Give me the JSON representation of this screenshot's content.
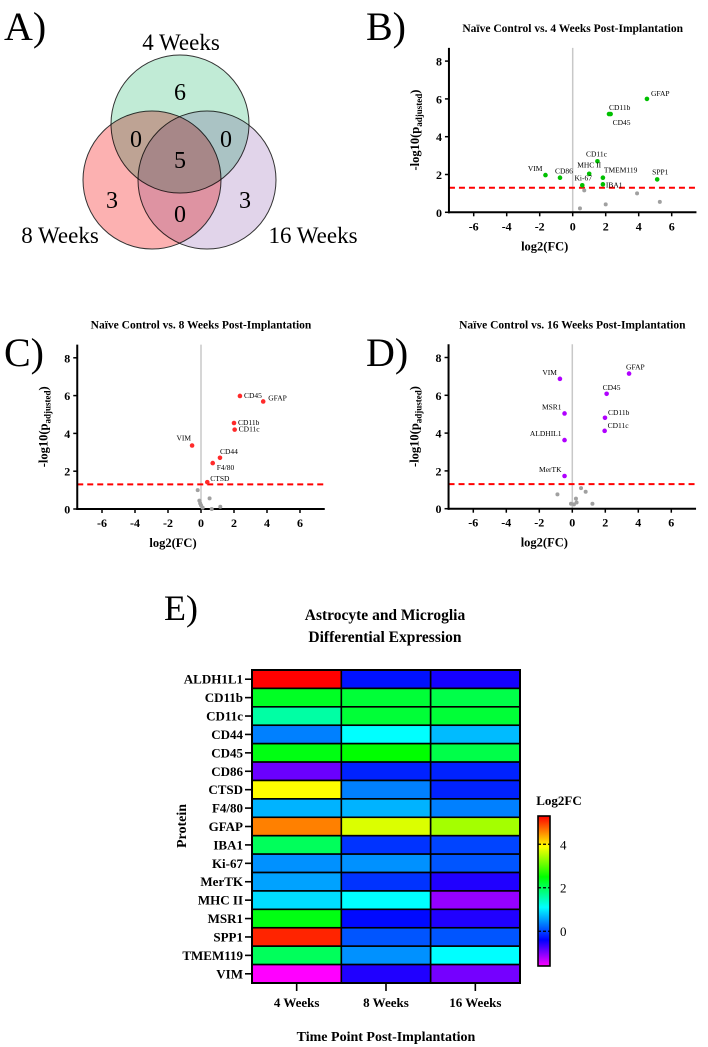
{
  "panel_labels": {
    "a": "A)",
    "b": "B)",
    "c": "C)",
    "d": "D)",
    "e": "E)"
  },
  "chart_data": [
    {
      "type": "venn",
      "sets": [
        {
          "name": "4 Weeks",
          "color": "#b6e8cf"
        },
        {
          "name": "8 Weeks",
          "color": "#fca3a3"
        },
        {
          "name": "16 Weeks",
          "color": "#dccde6"
        }
      ],
      "regions": {
        "only_4": "6",
        "only_8": "3",
        "only_16": "3",
        "4_and_8": "0",
        "4_and_16": "0",
        "8_and_16": "0",
        "all": "5"
      }
    },
    {
      "type": "scatter",
      "title": "Naïve Control vs. 4 Weeks Post-Implantation",
      "xlabel": "log2(FC)",
      "ylabel_main": "-log10(p",
      "ylabel_sub": "adjusted",
      "ylabel_end": ")",
      "xlim": [
        -7.5,
        7.5
      ],
      "ylim": [
        0,
        8.7
      ],
      "xticks": [
        "-6",
        "-4",
        "-2",
        "0",
        "2",
        "4",
        "6"
      ],
      "yticks": [
        "0",
        "2",
        "4",
        "6",
        "8"
      ],
      "threshold": 1.3,
      "threshold_color": "#ff0000",
      "color": "#00c000",
      "nonsig_color": "#a0a0a0",
      "significant": [
        {
          "label": "GFAP",
          "x": 4.5,
          "y": 6.0
        },
        {
          "label": "CD11b",
          "x": 2.2,
          "y": 5.2
        },
        {
          "label": "CD45",
          "x": 2.3,
          "y": 5.2
        },
        {
          "label": "CD11c",
          "x": 1.5,
          "y": 2.7
        },
        {
          "label": "MHC II",
          "x": 1.0,
          "y": 2.04
        },
        {
          "label": "TMEM119",
          "x": 1.83,
          "y": 1.83
        },
        {
          "label": "IBA1",
          "x": 1.83,
          "y": 1.48
        },
        {
          "label": "Ki-67",
          "x": 0.58,
          "y": 1.43
        },
        {
          "label": "VIM",
          "x": -1.65,
          "y": 1.97
        },
        {
          "label": "CD86",
          "x": -0.77,
          "y": 1.83
        },
        {
          "label": "SPP1",
          "x": 5.12,
          "y": 1.74
        }
      ],
      "nonsignificant": [
        [
          0.7,
          1.16
        ],
        [
          3.9,
          1.0
        ],
        [
          5.28,
          0.55
        ],
        [
          2.0,
          0.42
        ],
        [
          0.44,
          0.21
        ]
      ]
    },
    {
      "type": "scatter",
      "title": "Naïve Control vs. 8 Weeks Post-Implantation",
      "xlabel": "log2(FC)",
      "ylabel_main": "-log10(p",
      "ylabel_sub": "adjusted",
      "ylabel_end": ")",
      "xlim": [
        -7.5,
        7.5
      ],
      "ylim": [
        0,
        8.7
      ],
      "xticks": [
        "-6",
        "-4",
        "-2",
        "0",
        "2",
        "4",
        "6"
      ],
      "yticks": [
        "0",
        "2",
        "4",
        "6",
        "8"
      ],
      "threshold": 1.3,
      "threshold_color": "#ff0000",
      "color": "#ff2a2a",
      "nonsig_color": "#a0a0a0",
      "significant": [
        {
          "label": "CD45",
          "x": 2.36,
          "y": 5.98
        },
        {
          "label": "GFAP",
          "x": 3.77,
          "y": 5.69
        },
        {
          "label": "CD11b",
          "x": 2.0,
          "y": 4.55
        },
        {
          "label": "CD11c",
          "x": 2.04,
          "y": 4.2
        },
        {
          "label": "VIM",
          "x": -0.54,
          "y": 3.36
        },
        {
          "label": "CD44",
          "x": 1.15,
          "y": 2.71
        },
        {
          "label": "F4/80",
          "x": 0.71,
          "y": 2.43
        },
        {
          "label": "CTSD",
          "x": 0.38,
          "y": 1.42
        }
      ],
      "nonsignificant": [
        [
          -0.2,
          1.0
        ],
        [
          -0.1,
          0.44
        ],
        [
          0.52,
          0.56
        ],
        [
          0.0,
          0.2
        ],
        [
          0.1,
          0.07
        ],
        [
          0.65,
          0.0
        ],
        [
          1.17,
          0.12
        ],
        [
          -0.05,
          0.3
        ]
      ]
    },
    {
      "type": "scatter",
      "title": "Naïve Control vs. 16 Weeks Post-Implantation",
      "xlabel": "log2(FC)",
      "ylabel_main": "-log10(p",
      "ylabel_sub": "adjusted",
      "ylabel_end": ")",
      "xlim": [
        -7.5,
        7.5
      ],
      "ylim": [
        0,
        8.7
      ],
      "xticks": [
        "-6",
        "-4",
        "-2",
        "0",
        "2",
        "4",
        "6"
      ],
      "yticks": [
        "0",
        "2",
        "4",
        "6",
        "8"
      ],
      "threshold": 1.3,
      "threshold_color": "#ff0000",
      "color": "#b000ff",
      "nonsig_color": "#a0a0a0",
      "significant": [
        {
          "label": "GFAP",
          "x": 3.44,
          "y": 7.15
        },
        {
          "label": "VIM",
          "x": -0.75,
          "y": 6.87
        },
        {
          "label": "CD45",
          "x": 2.08,
          "y": 6.08
        },
        {
          "label": "MSR1",
          "x": -0.47,
          "y": 5.04
        },
        {
          "label": "CD11b",
          "x": 1.98,
          "y": 4.81
        },
        {
          "label": "CD11c",
          "x": 1.96,
          "y": 4.12
        },
        {
          "label": "ALDHIL1",
          "x": -0.47,
          "y": 3.63
        },
        {
          "label": "MerTK",
          "x": -0.47,
          "y": 1.73
        }
      ],
      "nonsignificant": [
        [
          -0.9,
          0.76
        ],
        [
          0.53,
          1.09
        ],
        [
          0.81,
          0.9
        ],
        [
          0.22,
          0.53
        ],
        [
          -0.08,
          0.26
        ],
        [
          0.1,
          0.23
        ],
        [
          1.22,
          0.26
        ],
        [
          0.26,
          0.33
        ]
      ]
    },
    {
      "type": "heatmap",
      "title_line1": "Astrocyte and Microglia",
      "title_line2": "Differential Expression",
      "xlabel": "Time Point Post-Implantation",
      "ylabel": "Protein",
      "columns": [
        "4 Weeks",
        "8 Weeks",
        "16 Weeks"
      ],
      "rows": [
        {
          "name": "ALDH1L1",
          "values": [
            5.3,
            -0.3,
            -0.5
          ]
        },
        {
          "name": "CD11b",
          "values": [
            2.3,
            2.2,
            2.1
          ]
        },
        {
          "name": "CD11c",
          "values": [
            1.6,
            2.2,
            2.2
          ]
        },
        {
          "name": "CD44",
          "values": [
            0.35,
            1.1,
            0.7
          ]
        },
        {
          "name": "CD45",
          "values": [
            2.4,
            2.5,
            2.1
          ]
        },
        {
          "name": "CD86",
          "values": [
            -0.9,
            -0.2,
            -0.2
          ]
        },
        {
          "name": "CTSD",
          "values": [
            3.9,
            0.35,
            -0.2
          ]
        },
        {
          "name": "F4/80",
          "values": [
            0.65,
            0.65,
            0.35
          ]
        },
        {
          "name": "GFAP",
          "values": [
            4.6,
            3.7,
            3.4
          ]
        },
        {
          "name": "IBA1",
          "values": [
            2.0,
            -0.1,
            0.0
          ]
        },
        {
          "name": "Ki-67",
          "values": [
            0.45,
            0.45,
            0.1
          ]
        },
        {
          "name": "MerTK",
          "values": [
            0.55,
            -0.1,
            -0.55
          ]
        },
        {
          "name": "MHC II",
          "values": [
            0.9,
            1.1,
            -1.1
          ]
        },
        {
          "name": "MSR1",
          "values": [
            2.4,
            -0.35,
            -0.55
          ]
        },
        {
          "name": "SPP1",
          "values": [
            5.1,
            0.1,
            0.1
          ]
        },
        {
          "name": "TMEM119",
          "values": [
            2.0,
            0.45,
            1.1
          ]
        },
        {
          "name": "VIM",
          "values": [
            -1.6,
            -0.55,
            -0.95
          ]
        }
      ],
      "colorbar": {
        "title": "Log2FC",
        "range": [
          -1.6,
          5.3
        ],
        "ticks": [
          "0",
          "2",
          "4"
        ],
        "stops": [
          {
            "v": -1.6,
            "c": "#ff00ff"
          },
          {
            "v": -0.4,
            "c": "#0000ff"
          },
          {
            "v": 1.1,
            "c": "#00ffff"
          },
          {
            "v": 2.5,
            "c": "#00ff00"
          },
          {
            "v": 3.9,
            "c": "#ffff00"
          },
          {
            "v": 5.3,
            "c": "#ff0000"
          }
        ]
      }
    }
  ]
}
